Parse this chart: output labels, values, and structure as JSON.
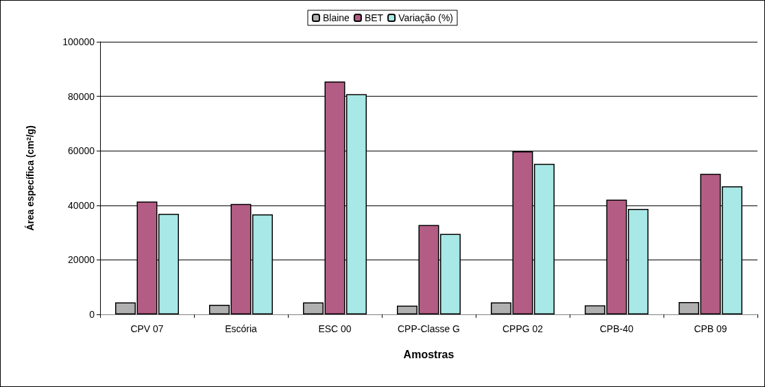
{
  "chart_data": {
    "type": "bar",
    "xlabel": "Amostras",
    "ylabel": "Área específica (cm$^{2}$/g)",
    "categories": [
      "CPV 07",
      "Escória",
      "ESC 00",
      "CPP-Classe G",
      "CPPG 02",
      "CPB-40",
      "CPB 09"
    ],
    "series": [
      {
        "name": "Blaine",
        "color": "#b0b0b0",
        "values": [
          4400,
          3500,
          4400,
          3200,
          4400,
          3300,
          4500
        ]
      },
      {
        "name": "BET",
        "color": "#b35c84",
        "values": [
          41400,
          40500,
          85400,
          32800,
          59800,
          42100,
          51600
        ]
      },
      {
        "name": "Variação (%)",
        "color": "#a8e8e6",
        "values": [
          36900,
          36700,
          80800,
          29500,
          55200,
          38700,
          47000
        ]
      }
    ],
    "ylim": [
      0,
      100000
    ],
    "yticks": [
      0,
      20000,
      40000,
      60000,
      80000,
      100000
    ],
    "grid": "y",
    "legend": "top"
  }
}
